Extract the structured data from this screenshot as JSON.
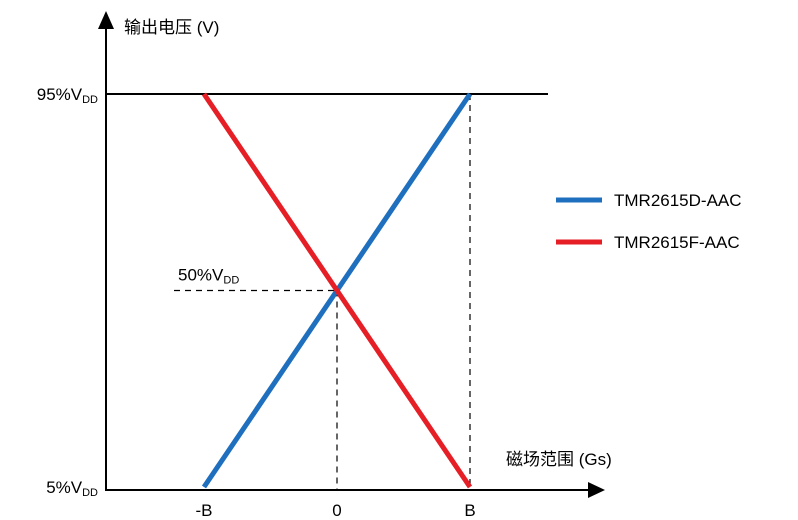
{
  "chart_data": {
    "type": "line",
    "ylabel": "输出电压 (V)",
    "xlabel": "磁场范围 (Gs)",
    "x_ticks": [
      "-B",
      "0",
      "B"
    ],
    "x": [
      -1,
      0,
      1
    ],
    "xlim": [
      -1,
      1
    ],
    "ylim": [
      5,
      95
    ],
    "y_ticks": [
      {
        "value": 95,
        "prefix": "95%V",
        "sub": "DD"
      },
      {
        "value": 5,
        "prefix": "5%V",
        "sub": "DD"
      }
    ],
    "annotation": {
      "value": 50,
      "prefix": "50%V",
      "sub": "DD"
    },
    "series": [
      {
        "name": "TMR2615D-AAC",
        "color": "#1f6fbf",
        "values": [
          5,
          50,
          95
        ]
      },
      {
        "name": "TMR2615F-AAC",
        "color": "#e61e25",
        "values": [
          95,
          50,
          5
        ]
      }
    ],
    "legend_position": "right",
    "grid": false
  }
}
